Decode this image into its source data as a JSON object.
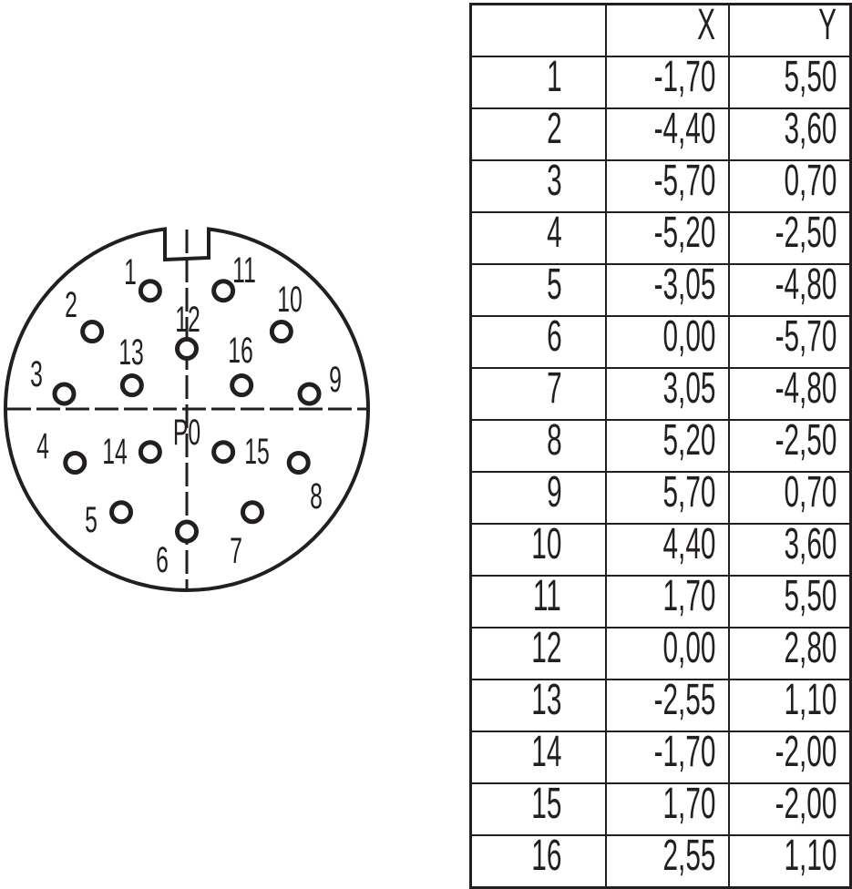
{
  "diagram": {
    "center_label": "P0",
    "stroke_color": "#231f20"
  },
  "table": {
    "headers": [
      "",
      "X",
      "Y"
    ],
    "rows": [
      {
        "pin": "1",
        "x": "-1,70",
        "y": "5,50"
      },
      {
        "pin": "2",
        "x": "-4,40",
        "y": "3,60"
      },
      {
        "pin": "3",
        "x": "-5,70",
        "y": "0,70"
      },
      {
        "pin": "4",
        "x": "-5,20",
        "y": "-2,50"
      },
      {
        "pin": "5",
        "x": "-3,05",
        "y": "-4,80"
      },
      {
        "pin": "6",
        "x": "0,00",
        "y": "-5,70"
      },
      {
        "pin": "7",
        "x": "3,05",
        "y": "-4,80"
      },
      {
        "pin": "8",
        "x": "5,20",
        "y": "-2,50"
      },
      {
        "pin": "9",
        "x": "5,70",
        "y": "0,70"
      },
      {
        "pin": "10",
        "x": "4,40",
        "y": "3,60"
      },
      {
        "pin": "11",
        "x": "1,70",
        "y": "5,50"
      },
      {
        "pin": "12",
        "x": "0,00",
        "y": "2,80"
      },
      {
        "pin": "13",
        "x": "-2,55",
        "y": "1,10"
      },
      {
        "pin": "14",
        "x": "-1,70",
        "y": "-2,00"
      },
      {
        "pin": "15",
        "x": "1,70",
        "y": "-2,00"
      },
      {
        "pin": "16",
        "x": "2,55",
        "y": "1,10"
      }
    ]
  }
}
